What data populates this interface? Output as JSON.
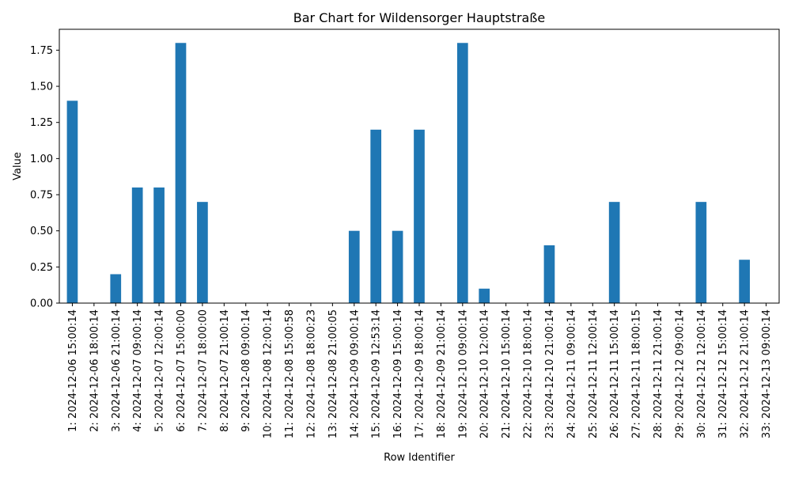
{
  "chart_data": {
    "type": "bar",
    "title": "Bar Chart for Wildensorger Hauptstraße",
    "xlabel": "Row Identifier",
    "ylabel": "Value",
    "ylim": [
      0,
      1.8945
    ],
    "yticks": [
      "0.00",
      "0.25",
      "0.50",
      "0.75",
      "1.00",
      "1.25",
      "1.50",
      "1.75"
    ],
    "ytick_values": [
      0,
      0.25,
      0.5,
      0.75,
      1.0,
      1.25,
      1.5,
      1.75
    ],
    "grid": false,
    "legend": "none",
    "bar_color": "#1f77b4",
    "categories": [
      "1: 2024-12-06 15:00:14",
      "2: 2024-12-06 18:00:14",
      "3: 2024-12-06 21:00:14",
      "4: 2024-12-07 09:00:14",
      "5: 2024-12-07 12:00:14",
      "6: 2024-12-07 15:00:00",
      "7: 2024-12-07 18:00:00",
      "8: 2024-12-07 21:00:14",
      "9: 2024-12-08 09:00:14",
      "10: 2024-12-08 12:00:14",
      "11: 2024-12-08 15:00:58",
      "12: 2024-12-08 18:00:23",
      "13: 2024-12-08 21:00:05",
      "14: 2024-12-09 09:00:14",
      "15: 2024-12-09 12:53:14",
      "16: 2024-12-09 15:00:14",
      "17: 2024-12-09 18:00:14",
      "18: 2024-12-09 21:00:14",
      "19: 2024-12-10 09:00:14",
      "20: 2024-12-10 12:00:14",
      "21: 2024-12-10 15:00:14",
      "22: 2024-12-10 18:00:14",
      "23: 2024-12-10 21:00:14",
      "24: 2024-12-11 09:00:14",
      "25: 2024-12-11 12:00:14",
      "26: 2024-12-11 15:00:14",
      "27: 2024-12-11 18:00:15",
      "28: 2024-12-11 21:00:14",
      "29: 2024-12-12 09:00:14",
      "30: 2024-12-12 12:00:14",
      "31: 2024-12-12 15:00:14",
      "32: 2024-12-12 21:00:14",
      "33: 2024-12-13 09:00:14"
    ],
    "values": [
      1.4,
      0,
      0.2,
      0.8,
      0.8,
      1.8,
      0.7,
      0,
      0,
      0,
      0,
      0,
      0,
      0.5,
      1.2,
      0.5,
      1.2,
      0,
      1.8,
      0.1,
      0,
      0,
      0.4,
      0,
      0,
      0.7,
      0,
      0,
      0,
      0.7,
      0,
      0.3,
      0
    ]
  }
}
